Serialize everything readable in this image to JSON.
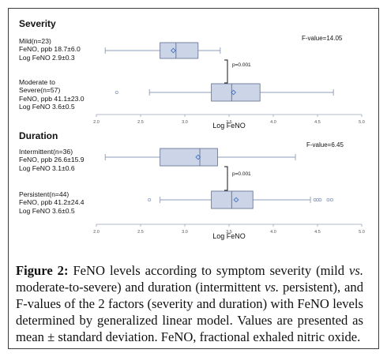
{
  "chart_data": [
    {
      "type": "boxplot",
      "title": "Severity",
      "xlabel": "Log FeNO",
      "xlim": [
        2.0,
        5.0
      ],
      "xticks": [
        "2.0",
        "2.5",
        "3.0",
        "3.5",
        "4.0",
        "4.5",
        "5.0"
      ],
      "fvalue": "F-value=14.05",
      "pvalue": "p=0.001",
      "groups": [
        {
          "label_lines": [
            "Mild(n=23)",
            "FeNO, ppb 18.7±6.0",
            "Log FeNO    2.9±0.3"
          ],
          "whisker_min": 2.1,
          "q1": 2.72,
          "median": 2.9,
          "q3": 3.15,
          "whisker_max": 3.4,
          "mean": 2.87,
          "outliers": []
        },
        {
          "label_lines": [
            "Moderate to",
            "Severe(n=57)",
            "FeNO, ppb 41.1±23.0",
            "Log FeNO    3.6±0.5"
          ],
          "whisker_min": 2.6,
          "q1": 3.3,
          "median": 3.53,
          "q3": 3.85,
          "whisker_max": 4.68,
          "mean": 3.55,
          "outliers": [
            2.23
          ]
        }
      ]
    },
    {
      "type": "boxplot",
      "title": "Duration",
      "xlabel": "Log FeNO",
      "xlim": [
        2.0,
        5.0
      ],
      "xticks": [
        "2.0",
        "2.5",
        "3.0",
        "3.5",
        "4.0",
        "4.5",
        "5.0"
      ],
      "fvalue": "F-value=6.45",
      "pvalue": "p=0.001",
      "groups": [
        {
          "label_lines": [
            "Intermittent(n=36)",
            "FeNO, ppb 26.6±15.9",
            "Log FeNO    3.1±0.6"
          ],
          "whisker_min": 2.1,
          "q1": 2.72,
          "median": 3.17,
          "q3": 3.37,
          "whisker_max": 4.25,
          "mean": 3.15,
          "outliers": []
        },
        {
          "label_lines": [
            "Persistent(n=44)",
            "FeNO, ppb 41.2±24.4",
            "Log FeNO    3.6±0.5"
          ],
          "whisker_min": 2.72,
          "q1": 3.3,
          "median": 3.53,
          "q3": 3.77,
          "whisker_max": 4.42,
          "mean": 3.58,
          "outliers": [
            2.6,
            4.47,
            4.5,
            4.53,
            4.62,
            4.66
          ]
        }
      ]
    }
  ],
  "caption": {
    "label": "Figure 2:",
    "text_a": " FeNO levels according to symptom severity (mild ",
    "vs1": "vs.",
    "text_b": " moderate-to-severe) and duration (intermittent ",
    "vs2": "vs.",
    "text_c": " persistent), and F-values of the 2 factors (severity and duration) with FeNO levels determined by generalized linear model. Values are presented as mean ± standard deviation. FeNO, fractional exhaled nitric oxide."
  },
  "colors": {
    "box_fill": "#ccd5e7",
    "box_edge": "#6a7a9a",
    "whisker": "#8e9bb8",
    "mean_marker": "#4472c4",
    "text": "#111111"
  }
}
